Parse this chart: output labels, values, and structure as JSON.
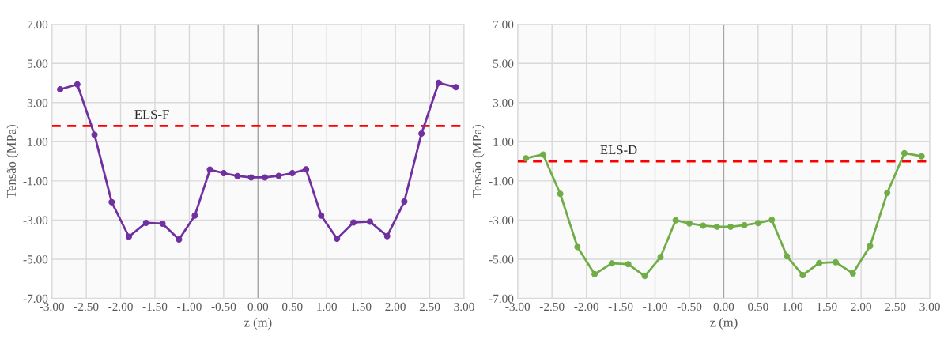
{
  "chart_data": [
    {
      "type": "line",
      "xlabel": "z (m)",
      "ylabel": "Tensão (MPa)",
      "marker": "circle",
      "line_style": "solid",
      "grid": true,
      "legend": false,
      "x": [
        -2.88,
        -2.63,
        -2.38,
        -2.13,
        -1.88,
        -1.63,
        -1.39,
        -1.15,
        -0.92,
        -0.7,
        -0.5,
        -0.3,
        -0.1,
        0.1,
        0.3,
        0.5,
        0.7,
        0.92,
        1.15,
        1.39,
        1.63,
        1.88,
        2.13,
        2.38,
        2.63,
        2.88
      ],
      "series": [
        {
          "color": "#7030a0",
          "values": [
            3.68,
            3.93,
            1.36,
            -2.08,
            -3.85,
            -3.14,
            -3.18,
            -3.99,
            -2.77,
            -0.42,
            -0.6,
            -0.75,
            -0.82,
            -0.82,
            -0.74,
            -0.6,
            -0.41,
            -2.77,
            -3.95,
            -3.12,
            -3.08,
            -3.82,
            -2.05,
            1.42,
            4.01,
            3.79
          ]
        }
      ],
      "ref_lines": [
        {
          "axis": "y",
          "value": 1.81,
          "label": "ELS-F",
          "color": "#ff0000",
          "line_style": "dashed"
        },
        {
          "axis": "x",
          "value": 0,
          "color": "#a6a6a6",
          "line_style": "solid"
        }
      ],
      "xlim": [
        -3,
        3
      ],
      "ylim": [
        -7,
        7
      ],
      "xticks": [
        {
          "value": -3,
          "label": "-3.00"
        },
        {
          "value": -2.5,
          "label": "-2.50"
        },
        {
          "value": -2,
          "label": "-2.00"
        },
        {
          "value": -1.5,
          "label": "-1.50"
        },
        {
          "value": -1,
          "label": "-1.00"
        },
        {
          "value": -0.5,
          "label": "-0.50"
        },
        {
          "value": 0,
          "label": "0.00"
        },
        {
          "value": 0.5,
          "label": "0.50"
        },
        {
          "value": 1,
          "label": "1.00"
        },
        {
          "value": 1.5,
          "label": "1.50"
        },
        {
          "value": 2,
          "label": "2.00"
        },
        {
          "value": 2.5,
          "label": "2.50"
        },
        {
          "value": 3,
          "label": "3.00"
        }
      ],
      "yticks": [
        {
          "value": -7,
          "label": "-7.00"
        },
        {
          "value": -5,
          "label": "-5.00"
        },
        {
          "value": -3,
          "label": "-3.00"
        },
        {
          "value": -1,
          "label": "-1.00"
        },
        {
          "value": 1,
          "label": "1.00"
        },
        {
          "value": 3,
          "label": "3.00"
        },
        {
          "value": 5,
          "label": "5.00"
        },
        {
          "value": 7,
          "label": "7.00"
        }
      ]
    },
    {
      "type": "line",
      "xlabel": "z (m)",
      "ylabel": "Tensão (MPa)",
      "marker": "circle",
      "line_style": "solid",
      "grid": true,
      "legend": false,
      "x": [
        -2.88,
        -2.63,
        -2.38,
        -2.13,
        -1.88,
        -1.63,
        -1.39,
        -1.15,
        -0.92,
        -0.7,
        -0.5,
        -0.3,
        -0.1,
        0.1,
        0.3,
        0.5,
        0.7,
        0.92,
        1.15,
        1.39,
        1.63,
        1.88,
        2.13,
        2.38,
        2.63,
        2.88
      ],
      "series": [
        {
          "color": "#70ad47",
          "values": [
            0.16,
            0.35,
            -1.66,
            -4.37,
            -5.76,
            -5.21,
            -5.25,
            -5.86,
            -4.89,
            -3.01,
            -3.17,
            -3.28,
            -3.34,
            -3.34,
            -3.26,
            -3.15,
            -2.99,
            -4.85,
            -5.81,
            -5.19,
            -5.15,
            -5.72,
            -4.32,
            -1.61,
            0.42,
            0.26
          ]
        }
      ],
      "ref_lines": [
        {
          "axis": "y",
          "value": 0,
          "label": "ELS-D",
          "color": "#ff0000",
          "line_style": "dashed"
        },
        {
          "axis": "x",
          "value": 0,
          "color": "#a6a6a6",
          "line_style": "solid"
        }
      ],
      "xlim": [
        -3,
        3
      ],
      "ylim": [
        -7,
        7
      ],
      "xticks": [
        {
          "value": -3,
          "label": "-3.00"
        },
        {
          "value": -2.5,
          "label": "-2.50"
        },
        {
          "value": -2,
          "label": "-2.00"
        },
        {
          "value": -1.5,
          "label": "-1.50"
        },
        {
          "value": -1,
          "label": "-1.00"
        },
        {
          "value": -0.5,
          "label": "-0.50"
        },
        {
          "value": 0,
          "label": "0.00"
        },
        {
          "value": 0.5,
          "label": "0.50"
        },
        {
          "value": 1,
          "label": "1.00"
        },
        {
          "value": 1.5,
          "label": "1.50"
        },
        {
          "value": 2,
          "label": "2.00"
        },
        {
          "value": 2.5,
          "label": "2.50"
        },
        {
          "value": 3,
          "label": "3.00"
        }
      ],
      "yticks": [
        {
          "value": -7,
          "label": "-7.00"
        },
        {
          "value": -5,
          "label": "-5.00"
        },
        {
          "value": -3,
          "label": "-3.00"
        },
        {
          "value": -1,
          "label": "-1.00"
        },
        {
          "value": 1,
          "label": "1.00"
        },
        {
          "value": 3,
          "label": "3.00"
        },
        {
          "value": 5,
          "label": "5.00"
        },
        {
          "value": 7,
          "label": "7.00"
        }
      ]
    }
  ]
}
